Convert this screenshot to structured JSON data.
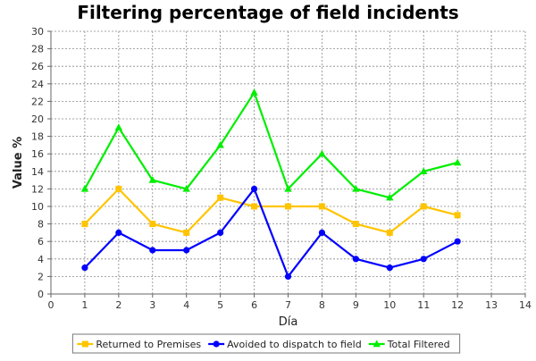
{
  "chart_data": {
    "type": "line",
    "title": "Filtering percentage of field incidents",
    "xlabel": "Día",
    "ylabel": "Value %",
    "xlim": [
      0,
      14
    ],
    "ylim": [
      0,
      30
    ],
    "x_ticks": [
      0,
      1,
      2,
      3,
      4,
      5,
      6,
      7,
      8,
      9,
      10,
      11,
      12,
      13,
      14
    ],
    "y_ticks": [
      0,
      2,
      4,
      6,
      8,
      10,
      12,
      14,
      16,
      18,
      20,
      22,
      24,
      26,
      28,
      30
    ],
    "grid": true,
    "legend_position": "bottom",
    "x": [
      1,
      2,
      3,
      4,
      5,
      6,
      7,
      8,
      9,
      10,
      11,
      12
    ],
    "series": [
      {
        "name": "Returned to Premises",
        "color": "#FFC400",
        "marker": "square",
        "values": [
          8,
          12,
          8,
          7,
          11,
          10,
          10,
          10,
          8,
          7,
          10,
          9
        ]
      },
      {
        "name": "Avoided to dispatch to field",
        "color": "#0000FF",
        "marker": "circle",
        "values": [
          3,
          7,
          5,
          5,
          7,
          12,
          2,
          7,
          4,
          3,
          4,
          6
        ]
      },
      {
        "name": "Total Filtered",
        "color": "#00EE00",
        "marker": "triangle",
        "values": [
          12,
          19,
          13,
          12,
          17,
          23,
          12,
          16,
          12,
          11,
          14,
          15
        ]
      }
    ]
  }
}
